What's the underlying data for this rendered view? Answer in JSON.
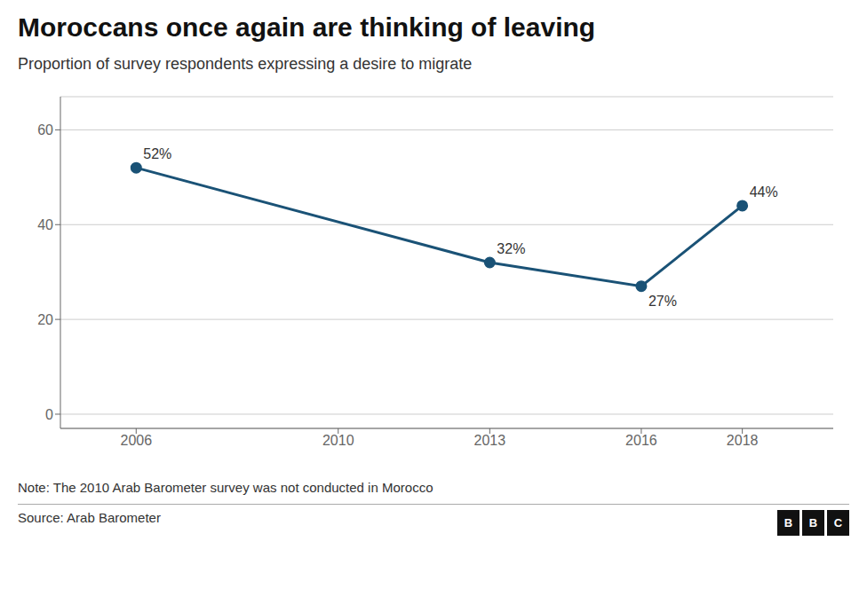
{
  "chart_data": {
    "type": "line",
    "title": "Moroccans once again are thinking of leaving",
    "subtitle": "Proportion of survey respondents expressing a desire to migrate",
    "note": "Note: The 2010 Arab Barometer survey was not conducted in Morocco",
    "source": "Source: Arab Barometer",
    "logo": "BBC",
    "x": [
      2006,
      2013,
      2016,
      2018
    ],
    "values": [
      52,
      32,
      27,
      44
    ],
    "value_labels": [
      "52%",
      "32%",
      "27%",
      "44%"
    ],
    "data_labels": true,
    "color": "#1a5276",
    "marker": "circle",
    "xlim": [
      2004.5,
      2019.8
    ],
    "xticks": [
      2006,
      2010,
      2013,
      2016,
      2018
    ],
    "ylim": [
      -3,
      67
    ],
    "yticks": [
      0,
      20,
      40,
      60
    ],
    "grid": true
  }
}
